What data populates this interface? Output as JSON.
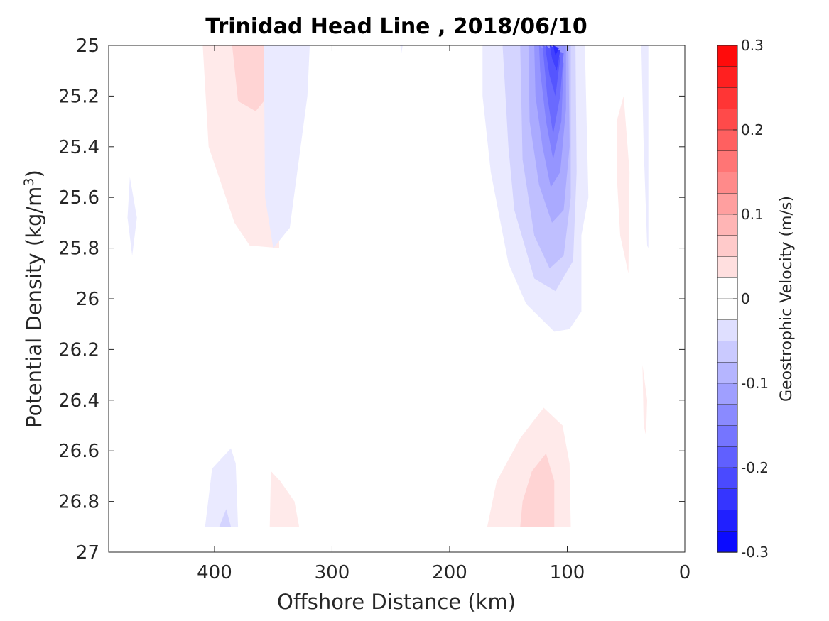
{
  "chart_data": {
    "type": "contour",
    "title": "Trinidad Head Line , 2018/06/10",
    "xlabel": "Offshore Distance (km)",
    "ylabel": "Potential Density (kg/m",
    "ylabel_sup": "3",
    "ylabel_end": ")",
    "xlim": [
      490,
      0
    ],
    "x_reversed": true,
    "ylim": [
      25,
      27
    ],
    "y_reversed": true,
    "xticks": [
      400,
      300,
      200,
      100,
      0
    ],
    "xtick_labels": [
      "400",
      "300",
      "200",
      "100",
      "0"
    ],
    "yticks": [
      25,
      25.2,
      25.4,
      25.6,
      25.8,
      26,
      26.2,
      26.4,
      26.6,
      26.8,
      27
    ],
    "ytick_labels": [
      "25",
      "25.2",
      "25.4",
      "25.6",
      "25.8",
      "26",
      "26.2",
      "26.4",
      "26.6",
      "26.8",
      "27"
    ],
    "colorbar": {
      "label": "Geostrophic Velocity (m/s)",
      "range": [
        -0.3,
        0.3
      ],
      "levels": 24,
      "ticks": [
        0.3,
        0.2,
        0.1,
        0,
        -0.1,
        -0.2,
        -0.3
      ],
      "tick_labels": [
        "0.3",
        "0.2",
        "0.1",
        "0",
        "-0.1",
        "-0.2",
        "-0.3"
      ],
      "neg_color": "#0000ff",
      "pos_color": "#ff0000",
      "zero_color": "#ffffff"
    },
    "contours": [
      {
        "level": 0.025,
        "points": [
          [
            410,
            25
          ],
          [
            345,
            25
          ],
          [
            345,
            25.8
          ],
          [
            370,
            25.79
          ],
          [
            383,
            25.7
          ],
          [
            405,
            25.4
          ]
        ]
      },
      {
        "level": 0.05,
        "points": [
          [
            385,
            25
          ],
          [
            352,
            25
          ],
          [
            358,
            25.22
          ],
          [
            365,
            25.26
          ],
          [
            380,
            25.22
          ]
        ]
      },
      {
        "level": -0.025,
        "points": [
          [
            358,
            25
          ],
          [
            319,
            25
          ],
          [
            321,
            25.2
          ],
          [
            336,
            25.72
          ],
          [
            350,
            25.8
          ],
          [
            357,
            25.6
          ]
        ]
      },
      {
        "level": -0.025,
        "points": [
          [
            472,
            25.52
          ],
          [
            466,
            25.68
          ],
          [
            470,
            25.83
          ],
          [
            474,
            25.68
          ]
        ]
      },
      {
        "level": -0.025,
        "points": [
          [
            240,
            25
          ],
          [
            241,
            25.03
          ],
          [
            242,
            25
          ]
        ]
      },
      {
        "level": -0.025,
        "points": [
          [
            172,
            25
          ],
          [
            85,
            25
          ],
          [
            82,
            25.6
          ],
          [
            88,
            25.75
          ],
          [
            88,
            26.05
          ],
          [
            98,
            26.12
          ],
          [
            111,
            26.13
          ],
          [
            135,
            26.02
          ],
          [
            150,
            25.86
          ],
          [
            165,
            25.5
          ],
          [
            172,
            25.2
          ]
        ]
      },
      {
        "level": -0.05,
        "points": [
          [
            155,
            25
          ],
          [
            93,
            25
          ],
          [
            92,
            25.5
          ],
          [
            95,
            25.85
          ],
          [
            110,
            25.97
          ],
          [
            128,
            25.92
          ],
          [
            145,
            25.65
          ],
          [
            150,
            25.4
          ]
        ]
      },
      {
        "level": -0.075,
        "points": [
          [
            140,
            25
          ],
          [
            97,
            25
          ],
          [
            97,
            25.6
          ],
          [
            103,
            25.83
          ],
          [
            115,
            25.88
          ],
          [
            128,
            25.75
          ],
          [
            138,
            25.45
          ]
        ]
      },
      {
        "level": -0.1,
        "points": [
          [
            133,
            25
          ],
          [
            99,
            25
          ],
          [
            98,
            25.4
          ],
          [
            103,
            25.65
          ],
          [
            113,
            25.7
          ],
          [
            124,
            25.55
          ],
          [
            132,
            25.3
          ]
        ]
      },
      {
        "level": -0.125,
        "points": [
          [
            128,
            25
          ],
          [
            101,
            25
          ],
          [
            101,
            25.25
          ],
          [
            106,
            25.5
          ],
          [
            114,
            25.56
          ],
          [
            121,
            25.4
          ],
          [
            127,
            25.2
          ]
        ]
      },
      {
        "level": -0.15,
        "points": [
          [
            124,
            25
          ],
          [
            103,
            25.07
          ],
          [
            105,
            25.3
          ],
          [
            112,
            25.45
          ],
          [
            118,
            25.3
          ],
          [
            123,
            25.1
          ]
        ]
      },
      {
        "level": -0.175,
        "points": [
          [
            121,
            25
          ],
          [
            103,
            25.03
          ],
          [
            106,
            25.2
          ],
          [
            112,
            25.35
          ],
          [
            117,
            25.2
          ],
          [
            120,
            25.05
          ]
        ]
      },
      {
        "level": -0.2,
        "points": [
          [
            118,
            25
          ],
          [
            106,
            25.05
          ],
          [
            110,
            25.2
          ],
          [
            115,
            25.12
          ],
          [
            118,
            25.03
          ]
        ]
      },
      {
        "level": -0.225,
        "points": [
          [
            115,
            25
          ],
          [
            106,
            25.02
          ],
          [
            109,
            25.1
          ],
          [
            113,
            25.05
          ]
        ]
      },
      {
        "level": -0.25,
        "points": [
          [
            112,
            25
          ],
          [
            107,
            25.01
          ],
          [
            110,
            25.04
          ]
        ]
      },
      {
        "level": -0.025,
        "points": [
          [
            37,
            25
          ],
          [
            31,
            25
          ],
          [
            31,
            25.8
          ],
          [
            32,
            25.79
          ],
          [
            35,
            25.4
          ]
        ]
      },
      {
        "level": 0.025,
        "points": [
          [
            58,
            25.3
          ],
          [
            52,
            25.2
          ],
          [
            47,
            25.5
          ],
          [
            48,
            25.9
          ],
          [
            55,
            25.75
          ],
          [
            58,
            25.5
          ]
        ]
      },
      {
        "level": 0.025,
        "points": [
          [
            36,
            26.26
          ],
          [
            32,
            26.4
          ],
          [
            33,
            26.54
          ],
          [
            35,
            26.5
          ]
        ]
      },
      {
        "level": -0.025,
        "points": [
          [
            408,
            26.9
          ],
          [
            380,
            26.9
          ],
          [
            382,
            26.65
          ],
          [
            386,
            26.59
          ],
          [
            402,
            26.67
          ]
        ]
      },
      {
        "level": -0.05,
        "points": [
          [
            396,
            26.9
          ],
          [
            386,
            26.9
          ],
          [
            390,
            26.83
          ]
        ]
      },
      {
        "level": 0.025,
        "points": [
          [
            353,
            26.9
          ],
          [
            328,
            26.9
          ],
          [
            332,
            26.8
          ],
          [
            344,
            26.72
          ],
          [
            352,
            26.68
          ]
        ]
      },
      {
        "level": 0.025,
        "points": [
          [
            168,
            26.9
          ],
          [
            97,
            26.9
          ],
          [
            98,
            26.65
          ],
          [
            104,
            26.5
          ],
          [
            120,
            26.43
          ],
          [
            140,
            26.55
          ],
          [
            160,
            26.72
          ]
        ]
      },
      {
        "level": 0.05,
        "points": [
          [
            140,
            26.9
          ],
          [
            111,
            26.9
          ],
          [
            111,
            26.72
          ],
          [
            118,
            26.61
          ],
          [
            130,
            26.68
          ],
          [
            138,
            26.8
          ]
        ]
      }
    ]
  }
}
